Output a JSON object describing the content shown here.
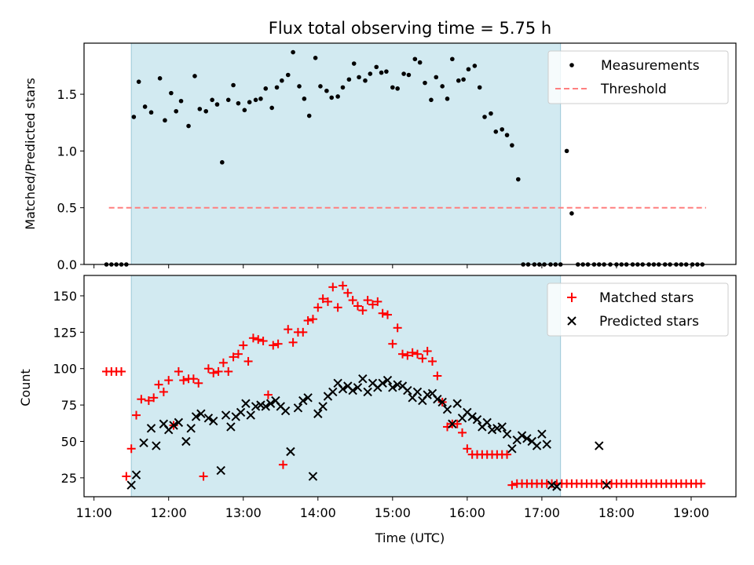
{
  "chart_data": [
    {
      "type": "scatter",
      "title": "Flux total observing time = 5.75 h",
      "xlabel": "",
      "ylabel": "Matched/Predicted stars",
      "xlim": [
        "10:52",
        "19:36"
      ],
      "ylim": [
        0,
        1.95
      ],
      "yticks": [
        0.0,
        0.5,
        1.0,
        1.5
      ],
      "ytick_labels": [
        "0.0",
        "0.5",
        "1.0",
        "1.5"
      ],
      "xticks": [
        "11:00",
        "12:00",
        "13:00",
        "14:00",
        "15:00",
        "16:00",
        "17:00",
        "18:00",
        "19:00"
      ],
      "shaded_span": [
        "11:30",
        "17:15"
      ],
      "shade_color": "#add8e6",
      "legend_position": "upper right",
      "legend": [
        {
          "label": "Measurements",
          "marker": "dot",
          "color": "#000000"
        },
        {
          "label": "Threshold",
          "marker": "dashed-line",
          "color": "#ff7f7f"
        }
      ],
      "threshold": {
        "name": "Threshold",
        "y": 0.5,
        "x_range": [
          "11:12",
          "19:12"
        ],
        "color": "#ff7f7f"
      },
      "series": [
        {
          "name": "Measurements",
          "color": "#000000",
          "x": [
            "11:10",
            "11:14",
            "11:18",
            "11:22",
            "11:26",
            "11:32",
            "11:36",
            "11:41",
            "11:46",
            "11:53",
            "11:57",
            "12:02",
            "12:06",
            "12:10",
            "12:16",
            "12:21",
            "12:25",
            "12:30",
            "12:35",
            "12:39",
            "12:43",
            "12:48",
            "12:52",
            "12:56",
            "13:01",
            "13:05",
            "13:10",
            "13:14",
            "13:18",
            "13:23",
            "13:27",
            "13:31",
            "13:36",
            "13:40",
            "13:45",
            "13:49",
            "13:53",
            "13:58",
            "14:02",
            "14:07",
            "14:11",
            "14:16",
            "14:20",
            "14:25",
            "14:29",
            "14:33",
            "14:38",
            "14:42",
            "14:47",
            "14:51",
            "14:55",
            "15:00",
            "15:04",
            "15:09",
            "15:13",
            "15:18",
            "15:22",
            "15:26",
            "15:31",
            "15:35",
            "15:40",
            "15:44",
            "15:48",
            "15:53",
            "15:57",
            "16:01",
            "16:06",
            "16:10",
            "16:14",
            "16:19",
            "16:23",
            "16:28",
            "16:32",
            "16:36",
            "16:41",
            "16:45",
            "16:49",
            "16:54",
            "16:58",
            "17:02",
            "17:07",
            "17:11",
            "17:15",
            "17:20",
            "17:24",
            "17:29",
            "17:33",
            "17:37",
            "17:42",
            "17:46",
            "17:50",
            "17:55",
            "18:00",
            "18:04",
            "18:08",
            "18:13",
            "18:17",
            "18:21",
            "18:26",
            "18:30",
            "18:34",
            "18:39",
            "18:43",
            "18:48",
            "18:52",
            "18:56",
            "19:01",
            "19:05",
            "19:09"
          ],
          "y": [
            0,
            0,
            0,
            0,
            0,
            1.3,
            1.61,
            1.39,
            1.34,
            1.64,
            1.27,
            1.51,
            1.35,
            1.44,
            1.22,
            1.66,
            1.37,
            1.35,
            1.45,
            1.41,
            0.9,
            1.45,
            1.58,
            1.42,
            1.36,
            1.43,
            1.45,
            1.46,
            1.55,
            1.38,
            1.56,
            1.62,
            1.67,
            1.87,
            1.57,
            1.46,
            1.31,
            1.82,
            1.57,
            1.53,
            1.47,
            1.48,
            1.56,
            1.63,
            1.77,
            1.65,
            1.62,
            1.68,
            1.74,
            1.69,
            1.7,
            1.56,
            1.55,
            1.68,
            1.67,
            1.81,
            1.78,
            1.6,
            1.45,
            1.65,
            1.57,
            1.46,
            1.81,
            1.62,
            1.63,
            1.72,
            1.75,
            1.56,
            1.3,
            1.33,
            1.17,
            1.19,
            1.14,
            1.05,
            0.75,
            0,
            0,
            0,
            0,
            0,
            0,
            0,
            0,
            1.0,
            0.45,
            0,
            0,
            0,
            0,
            0,
            0,
            0,
            0,
            0,
            0,
            0,
            0,
            0,
            0,
            0,
            0,
            0,
            0,
            0,
            0,
            0,
            0,
            0,
            0
          ]
        }
      ]
    },
    {
      "type": "scatter",
      "title": "",
      "xlabel": "Time (UTC)",
      "ylabel": "Count",
      "xlim": [
        "10:52",
        "19:36"
      ],
      "ylim": [
        12,
        164
      ],
      "yticks": [
        25,
        50,
        75,
        100,
        125,
        150
      ],
      "ytick_labels": [
        "25",
        "50",
        "75",
        "100",
        "125",
        "150"
      ],
      "xticks": [
        "11:00",
        "12:00",
        "13:00",
        "14:00",
        "15:00",
        "16:00",
        "17:00",
        "18:00",
        "19:00"
      ],
      "xtick_labels": [
        "11:00",
        "12:00",
        "13:00",
        "14:00",
        "15:00",
        "16:00",
        "17:00",
        "18:00",
        "19:00"
      ],
      "shaded_span": [
        "11:30",
        "17:15"
      ],
      "shade_color": "#add8e6",
      "legend_position": "upper right",
      "legend": [
        {
          "label": "Matched stars",
          "marker": "plus",
          "color": "#ff0000"
        },
        {
          "label": "Predicted stars",
          "marker": "x",
          "color": "#000000"
        }
      ],
      "series": [
        {
          "name": "Matched stars",
          "marker": "plus",
          "color": "#ff0000",
          "x": [
            "11:10",
            "11:14",
            "11:18",
            "11:22",
            "11:26",
            "11:30",
            "11:34",
            "11:38",
            "11:44",
            "11:48",
            "11:52",
            "11:56",
            "12:00",
            "12:04",
            "12:08",
            "12:12",
            "12:16",
            "12:20",
            "12:24",
            "12:28",
            "12:32",
            "12:36",
            "12:40",
            "12:44",
            "12:48",
            "12:52",
            "12:56",
            "13:00",
            "13:04",
            "13:08",
            "13:12",
            "13:16",
            "13:20",
            "13:24",
            "13:28",
            "13:32",
            "13:36",
            "13:40",
            "13:44",
            "13:48",
            "13:52",
            "13:56",
            "14:00",
            "14:04",
            "14:08",
            "14:12",
            "14:16",
            "14:20",
            "14:24",
            "14:28",
            "14:32",
            "14:36",
            "14:40",
            "14:44",
            "14:48",
            "14:52",
            "14:56",
            "15:00",
            "15:04",
            "15:08",
            "15:12",
            "15:16",
            "15:20",
            "15:24",
            "15:28",
            "15:32",
            "15:36",
            "15:40",
            "15:44",
            "15:48",
            "15:52",
            "15:56",
            "16:00",
            "16:04",
            "16:08",
            "16:12",
            "16:16",
            "16:20",
            "16:24",
            "16:28",
            "16:32",
            "16:36",
            "16:40",
            "16:44",
            "16:48",
            "16:52",
            "16:56",
            "17:00",
            "17:04",
            "17:08",
            "17:12",
            "17:16",
            "17:20",
            "17:24",
            "17:28",
            "17:32",
            "17:36",
            "17:40",
            "17:44",
            "17:48",
            "17:52",
            "17:56",
            "18:00",
            "18:04",
            "18:08",
            "18:12",
            "18:16",
            "18:20",
            "18:24",
            "18:28",
            "18:32",
            "18:36",
            "18:40",
            "18:44",
            "18:48",
            "18:52",
            "18:56",
            "19:00",
            "19:04",
            "19:08"
          ],
          "y": [
            98,
            98,
            98,
            98,
            26,
            45,
            68,
            79,
            78,
            80,
            89,
            84,
            92,
            61,
            98,
            92,
            93,
            93,
            90,
            26,
            100,
            97,
            98,
            104,
            98,
            108,
            110,
            116,
            105,
            121,
            120,
            119,
            82,
            116,
            117,
            34,
            127,
            118,
            125,
            125,
            133,
            134,
            142,
            148,
            146,
            156,
            142,
            157,
            152,
            147,
            143,
            140,
            147,
            144,
            146,
            138,
            137,
            117,
            128,
            110,
            109,
            111,
            110,
            107,
            112,
            105,
            95,
            77,
            60,
            62,
            62,
            56,
            45,
            41,
            41,
            41,
            41,
            41,
            41,
            41,
            41,
            20,
            21,
            21,
            21,
            21,
            21,
            21,
            21,
            21,
            21,
            21,
            21,
            21,
            21,
            21,
            21,
            21,
            21,
            21,
            21,
            21,
            21,
            21,
            21,
            21,
            21,
            21,
            21,
            21,
            21,
            21,
            21,
            21,
            21,
            21,
            21,
            21,
            21,
            21
          ],
          "note": ""
        },
        {
          "name": "Predicted stars",
          "marker": "x",
          "color": "#000000",
          "x": [
            "11:30",
            "11:34",
            "11:40",
            "11:46",
            "11:50",
            "11:56",
            "12:00",
            "12:04",
            "12:08",
            "12:14",
            "12:18",
            "12:22",
            "12:26",
            "12:32",
            "12:36",
            "12:42",
            "12:46",
            "12:50",
            "12:54",
            "12:58",
            "13:02",
            "13:06",
            "13:10",
            "13:14",
            "13:18",
            "13:22",
            "13:26",
            "13:30",
            "13:34",
            "13:38",
            "13:44",
            "13:48",
            "13:52",
            "13:56",
            "14:00",
            "14:04",
            "14:08",
            "14:12",
            "14:16",
            "14:20",
            "14:24",
            "14:28",
            "14:32",
            "14:36",
            "14:40",
            "14:44",
            "14:48",
            "14:52",
            "14:56",
            "15:00",
            "15:04",
            "15:08",
            "15:12",
            "15:16",
            "15:20",
            "15:24",
            "15:28",
            "15:32",
            "15:36",
            "15:40",
            "15:44",
            "15:48",
            "15:52",
            "15:56",
            "16:00",
            "16:04",
            "16:08",
            "16:12",
            "16:16",
            "16:20",
            "16:24",
            "16:28",
            "16:32",
            "16:36",
            "16:40",
            "16:44",
            "16:48",
            "16:52",
            "16:56",
            "17:00",
            "17:04",
            "17:08",
            "17:12",
            "17:46",
            "17:52"
          ],
          "y": [
            20,
            27,
            49,
            59,
            47,
            62,
            58,
            61,
            63,
            50,
            59,
            67,
            69,
            66,
            64,
            30,
            68,
            60,
            67,
            70,
            76,
            68,
            74,
            75,
            74,
            76,
            78,
            74,
            71,
            43,
            73,
            78,
            80,
            26,
            69,
            74,
            81,
            84,
            90,
            86,
            88,
            85,
            87,
            93,
            84,
            90,
            87,
            90,
            92,
            87,
            89,
            88,
            85,
            80,
            84,
            78,
            82,
            83,
            79,
            77,
            72,
            62,
            76,
            66,
            70,
            67,
            65,
            60,
            63,
            58,
            59,
            60,
            55,
            45,
            51,
            54,
            52,
            50,
            47,
            55,
            48,
            20,
            19,
            47,
            20
          ]
        }
      ]
    }
  ]
}
